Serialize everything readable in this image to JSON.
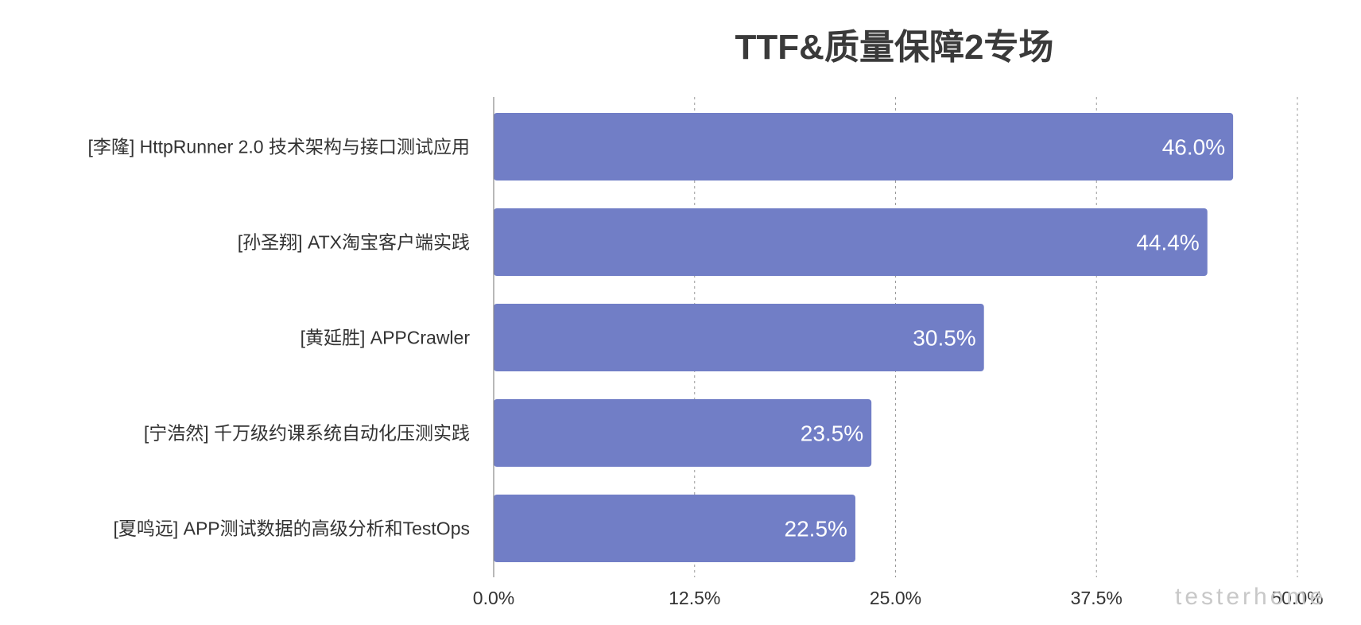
{
  "chart_data": {
    "type": "bar",
    "orientation": "horizontal",
    "title": "TTF&质量保障2专场",
    "categories": [
      "[李隆] HttpRunner 2.0 技术架构与接口测试应用",
      "[孙圣翔] ATX淘宝客户端实践",
      "[黄延胜] APPCrawler",
      "[宁浩然] 千万级约课系统自动化压测实践",
      "[夏鸣远] APP测试数据的高级分析和TestOps"
    ],
    "values": [
      46.0,
      44.4,
      30.5,
      23.5,
      22.5
    ],
    "data_labels": [
      "46.0%",
      "44.4%",
      "30.5%",
      "23.5%",
      "22.5%"
    ],
    "xlim": [
      0,
      50
    ],
    "x_ticks": [
      0,
      12.5,
      25,
      37.5,
      50
    ],
    "x_tick_labels": [
      "0.0%",
      "12.5%",
      "25.0%",
      "37.5%",
      "50.0%"
    ],
    "xlabel": "",
    "ylabel": "",
    "grid": "vertical-dotted",
    "legend": "none",
    "bar_color": "#717ec6",
    "watermark": "testerhome"
  }
}
